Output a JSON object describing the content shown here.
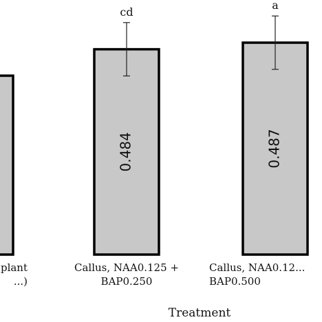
{
  "chart_data": {
    "type": "bar",
    "xlabel": "Treatment",
    "ylabel": "",
    "ylim": [
      0,
      0.55
    ],
    "categories": [
      [
        "...plant",
        "...)"
      ],
      [
        "Callus, NAA0.125 +",
        "BAP0.250"
      ],
      [
        "Callus, NAA0.12...",
        "BAP0.500"
      ]
    ],
    "values": [
      0.472,
      0.484,
      0.487
    ],
    "value_labels": [
      "",
      "0.484",
      "0.487"
    ],
    "significance_letters": [
      "",
      "cd",
      "a"
    ],
    "error_bars": [
      0.0,
      0.004,
      0.004
    ],
    "bar_fill": "#c8c8c8",
    "bar_edge": "#000000",
    "grid": false,
    "legend": "none"
  }
}
